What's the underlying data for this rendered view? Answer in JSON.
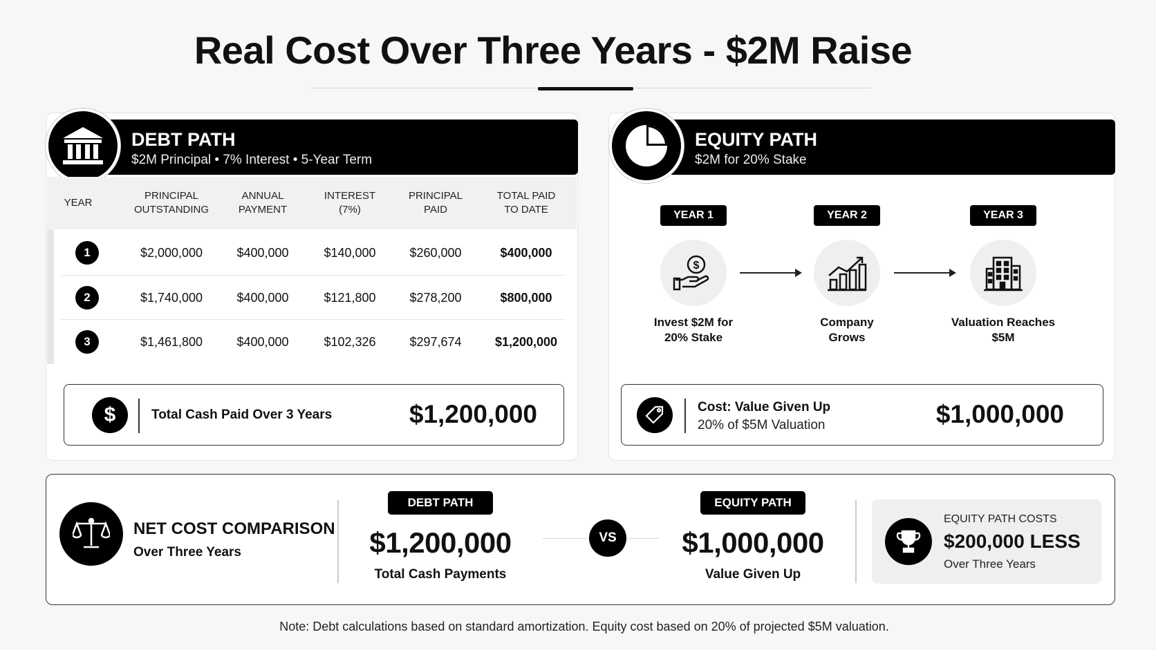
{
  "title": "Real Cost Over Three Years - $2M Raise",
  "debt": {
    "title": "DEBT PATH",
    "subtitle": "$2M Principal • 7% Interest • 5-Year Term",
    "headers": {
      "year": "YEAR",
      "principal_outstanding": [
        "PRINCIPAL",
        "OUTSTANDING"
      ],
      "annual_payment": [
        "ANNUAL",
        "PAYMENT"
      ],
      "interest": [
        "INTEREST",
        "(7%)"
      ],
      "principal_paid": [
        "PRINCIPAL",
        "PAID"
      ],
      "total_paid": [
        "TOTAL PAID",
        "TO DATE"
      ]
    },
    "rows": [
      {
        "year": "1",
        "principal_outstanding": "$2,000,000",
        "annual_payment": "$400,000",
        "interest": "$140,000",
        "principal_paid": "$260,000",
        "total_paid": "$400,000"
      },
      {
        "year": "2",
        "principal_outstanding": "$1,740,000",
        "annual_payment": "$400,000",
        "interest": "$121,800",
        "principal_paid": "$278,200",
        "total_paid": "$800,000"
      },
      {
        "year": "3",
        "principal_outstanding": "$1,461,800",
        "annual_payment": "$400,000",
        "interest": "$102,326",
        "principal_paid": "$297,674",
        "total_paid": "$1,200,000"
      }
    ],
    "total_label": "Total Cash Paid Over 3 Years",
    "total_value": "$1,200,000"
  },
  "equity": {
    "title": "EQUITY PATH",
    "subtitle": "$2M for 20% Stake",
    "steps": [
      {
        "year": "YEAR 1",
        "label": [
          "Invest $2M for",
          "20% Stake"
        ],
        "icon": "hand-dollar-icon"
      },
      {
        "year": "YEAR 2",
        "label": [
          "Company",
          "Grows"
        ],
        "icon": "growth-chart-icon"
      },
      {
        "year": "YEAR 3",
        "label": [
          "Valuation Reaches",
          "$5M"
        ],
        "icon": "building-icon"
      }
    ],
    "cost_label": "Cost: Value Given Up",
    "cost_sub": "20% of $5M Valuation",
    "cost_value": "$1,000,000"
  },
  "comparison": {
    "title": "NET COST COMPARISON",
    "subtitle": "Over Three Years",
    "debt_pill": "DEBT PATH",
    "debt_value": "$1,200,000",
    "debt_caption": "Total Cash Payments",
    "vs": "VS",
    "equity_pill": "EQUITY PATH",
    "equity_value": "$1,000,000",
    "equity_caption": "Value Given Up",
    "result_top": "EQUITY PATH COSTS",
    "result_value": "$200,000 LESS",
    "result_bottom": "Over Three Years"
  },
  "note": "Note: Debt calculations based on standard amortization. Equity cost based on 20% of projected $5M valuation."
}
